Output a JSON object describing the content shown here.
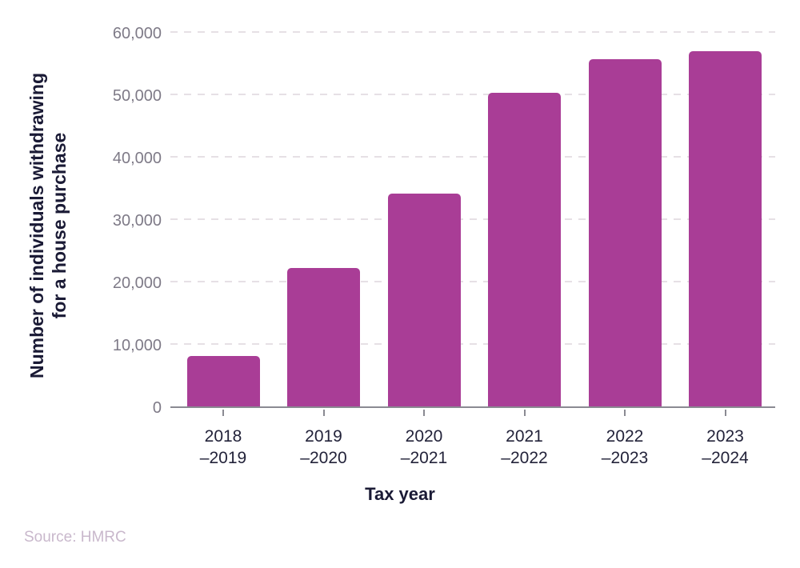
{
  "chart_data": {
    "type": "bar",
    "title": "",
    "categories": [
      "2018\n–2019",
      "2019\n–2020",
      "2020\n–2021",
      "2021\n–2022",
      "2022\n–2023",
      "2023\n–2024"
    ],
    "values": [
      8100,
      22200,
      34100,
      50200,
      55700,
      56900
    ],
    "xlabel": "Tax year",
    "ylabel": "Number of individuals withdrawing\nfor a house purchase",
    "ylim": [
      0,
      60000
    ],
    "ytick_values": [
      0,
      10000,
      20000,
      30000,
      40000,
      50000,
      60000
    ],
    "ytick_labels": [
      "0",
      "10,000",
      "20,000",
      "30,000",
      "40,000",
      "50,000",
      "60,000"
    ],
    "grid": "horizontal-dashed",
    "legend": "none",
    "bar_color": "#a93d96"
  },
  "source": {
    "label": "Source: HMRC"
  }
}
